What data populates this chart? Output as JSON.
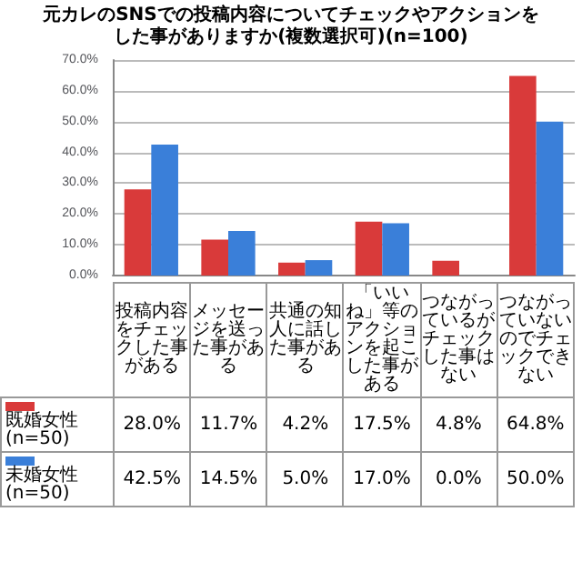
{
  "chart_data": {
    "type": "bar",
    "title": "元カレのSNSでの投稿内容についてチェックやアクションをした事がありますか(複数選択可)(n=100)",
    "categories": [
      "投稿内容をチェックした事がある",
      "メッセージを送った事がある",
      "共通の知人に話した事がある",
      "「いいね」等のアクションを起こした事がある",
      "つながっているがチェックした事はない",
      "つながっていないのでチェックできない"
    ],
    "series": [
      {
        "name": "既婚女性(n=50)",
        "color": "#d93a3a",
        "values": [
          28.0,
          11.7,
          4.2,
          17.5,
          4.8,
          64.8
        ],
        "value_labels": [
          "28.0%",
          "11.7%",
          "4.2%",
          "17.5%",
          "4.8%",
          "64.8%"
        ]
      },
      {
        "name": "未婚女性(n=50)",
        "color": "#3a7fd9",
        "values": [
          42.5,
          14.5,
          5.0,
          17.0,
          0.0,
          50.0
        ],
        "value_labels": [
          "42.5%",
          "14.5%",
          "5.0%",
          "17.0%",
          "0.0%",
          "50.0%"
        ]
      }
    ],
    "ylim": [
      0,
      70
    ],
    "yticks": [
      {
        "value": 0,
        "label": "0.0%"
      },
      {
        "value": 10,
        "label": "10.0%"
      },
      {
        "value": 20,
        "label": "20.0%"
      },
      {
        "value": 30,
        "label": "30.0%"
      },
      {
        "value": 40,
        "label": "40.0%"
      },
      {
        "value": 50,
        "label": "50.0%"
      },
      {
        "value": 60,
        "label": "60.0%"
      },
      {
        "value": 70,
        "label": "70.0%"
      }
    ],
    "grid": "y",
    "legend": "bottom left"
  }
}
